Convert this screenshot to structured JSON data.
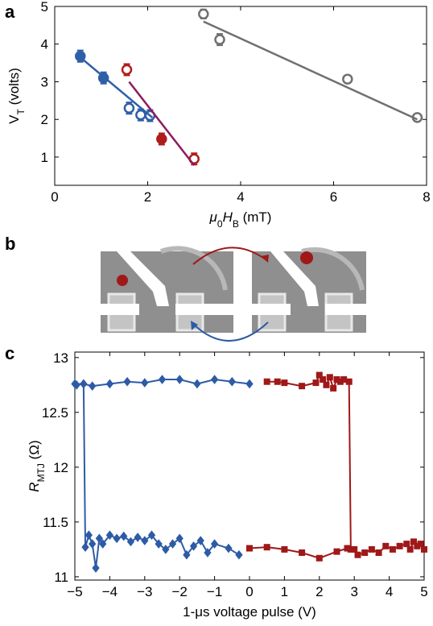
{
  "chart_data": [
    {
      "type": "scatter",
      "label": "a",
      "xlabel": [
        {
          "text": "μ",
          "style": "italic"
        },
        {
          "text": "0",
          "style": "sub"
        },
        {
          "text": "H",
          "style": "italic"
        },
        {
          "text": "B",
          "style": "sub"
        },
        {
          "text": " (mT)"
        }
      ],
      "ylabel": [
        {
          "text": "V"
        },
        {
          "text": "T",
          "style": "sub"
        },
        {
          "text": " (volts)"
        }
      ],
      "xlim": [
        0,
        8
      ],
      "ylim": [
        0.25,
        5
      ],
      "xticks": [
        0,
        2,
        4,
        6,
        8
      ],
      "yticks": [
        1,
        2,
        3,
        4,
        5
      ],
      "series": [
        {
          "color": "#2e5fa8",
          "marker": "circle",
          "x": [
            0.55,
            1.05,
            1.6,
            1.85,
            2.05
          ],
          "values": [
            3.68,
            3.1,
            2.3,
            2.12,
            2.1
          ],
          "errors": [
            0.15,
            0.15,
            0.15,
            0.15,
            0.15
          ],
          "filled": [
            true,
            true,
            false,
            false,
            false
          ]
        },
        {
          "color": "#b01c1c",
          "marker": "circle",
          "x": [
            1.55,
            2.3,
            3.0
          ],
          "values": [
            3.32,
            1.48,
            0.95
          ],
          "errors": [
            0.15,
            0.15,
            0.15
          ],
          "filled": [
            false,
            true,
            false
          ]
        },
        {
          "color": "#707070",
          "marker": "circle",
          "x": [
            3.2,
            3.55,
            6.3,
            7.8
          ],
          "values": [
            4.8,
            4.12,
            3.07,
            2.05
          ],
          "errors": [
            0.12,
            0.15,
            0.1,
            0.08
          ],
          "filled": [
            false,
            false,
            false,
            false
          ]
        },
        {
          "color": "#2e5fa8",
          "line": true,
          "x": [
            0.5,
            2.1
          ],
          "values": [
            3.7,
            2.05
          ]
        },
        {
          "color": "#8e1b5e",
          "line": true,
          "x": [
            1.6,
            3.0
          ],
          "values": [
            3.0,
            0.78
          ]
        },
        {
          "color": "#707070",
          "line": true,
          "x": [
            3.2,
            7.8
          ],
          "values": [
            4.6,
            2.0
          ]
        }
      ]
    },
    {
      "type": "image",
      "label": "b"
    },
    {
      "type": "line",
      "label": "c",
      "xlabel": [
        {
          "text": "1-μs voltage pulse (V)"
        }
      ],
      "ylabel": [
        {
          "text": "R",
          "style": "italic"
        },
        {
          "text": "MTJ",
          "style": "sub"
        },
        {
          "text": " (Ω)"
        }
      ],
      "xlim": [
        -5,
        5
      ],
      "ylim": [
        10.97,
        13.05
      ],
      "xticks": [
        {
          "value": -5,
          "label": "−5"
        },
        {
          "value": -4,
          "label": "−4"
        },
        {
          "value": -3,
          "label": "−3"
        },
        {
          "value": -2,
          "label": "−2"
        },
        {
          "value": -1,
          "label": "−1"
        },
        0,
        1,
        2,
        3,
        4,
        5
      ],
      "yticks": [
        11,
        11.5,
        12,
        12.5,
        13
      ],
      "series": [
        {
          "color": "#2d5ba6",
          "marker": "diamond",
          "line": true,
          "x": [
            0,
            -0.5,
            -1,
            -1.5,
            -2,
            -2.5,
            -3,
            -3.5,
            -4,
            -4.5,
            -4.75,
            -4.95,
            -5,
            -4.75,
            -4.7,
            -4.6,
            -4.5,
            -4.4,
            -4.3,
            -4.2,
            -4.0,
            -3.8,
            -3.6,
            -3.4,
            -3.2,
            -3.0,
            -2.8,
            -2.6,
            -2.4,
            -2.2,
            -2.0,
            -1.8,
            -1.6,
            -1.4,
            -1.2,
            -1.0,
            -0.6,
            -0.3
          ],
          "values": [
            12.76,
            12.78,
            12.8,
            12.76,
            12.8,
            12.8,
            12.77,
            12.78,
            12.76,
            12.74,
            12.76,
            12.75,
            12.76,
            12.76,
            11.27,
            11.38,
            11.3,
            11.08,
            11.35,
            11.3,
            11.38,
            11.35,
            11.37,
            11.32,
            11.36,
            11.33,
            11.38,
            11.3,
            11.25,
            11.3,
            11.35,
            11.2,
            11.28,
            11.33,
            11.22,
            11.3,
            11.26,
            11.2
          ]
        },
        {
          "color": "#a01818",
          "marker": "square",
          "line": true,
          "x": [
            0.5,
            0.8,
            1.0,
            1.5,
            1.9,
            2.0,
            2.1,
            2.2,
            2.3,
            2.4,
            2.5,
            2.6,
            2.7,
            2.85,
            2.9,
            3.0,
            3.1,
            3.3,
            3.5,
            3.7,
            3.9,
            4.1,
            4.3,
            4.5,
            4.6,
            4.7,
            4.8,
            4.9,
            5.0
          ],
          "values": [
            12.78,
            12.78,
            12.77,
            12.74,
            12.77,
            12.84,
            12.8,
            12.75,
            12.82,
            12.72,
            12.8,
            12.78,
            12.8,
            12.78,
            11.25,
            11.25,
            11.2,
            11.22,
            11.25,
            11.22,
            11.28,
            11.25,
            11.28,
            11.3,
            11.25,
            11.32,
            11.28,
            11.3,
            11.25
          ]
        },
        {
          "color": "#a01818",
          "marker": "square",
          "line": true,
          "x": [
            0,
            0.5,
            1.0,
            1.5,
            2.0,
            2.5,
            2.8
          ],
          "values": [
            11.26,
            11.27,
            11.25,
            11.22,
            11.17,
            11.23,
            11.26
          ]
        }
      ]
    }
  ]
}
